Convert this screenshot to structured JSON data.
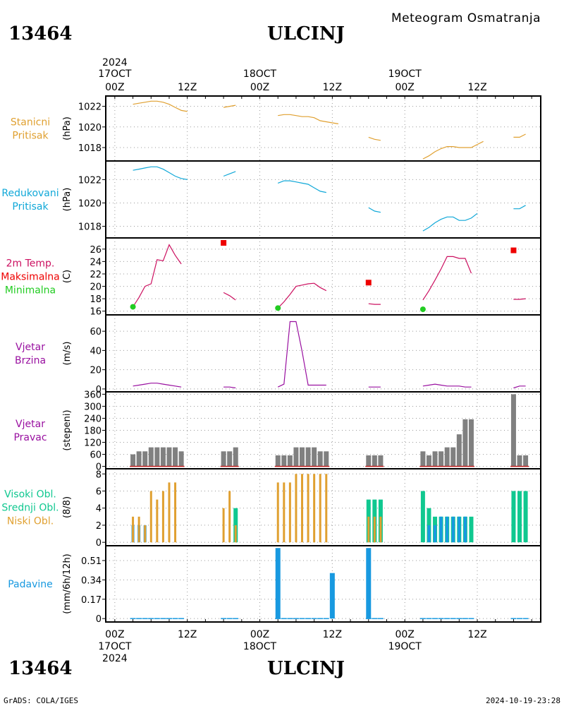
{
  "header": {
    "station_id": "13464",
    "station_name": "ULCINJ",
    "subtitle": "Meteogram Osmatranja"
  },
  "footer": {
    "left": "GrADS: COLA/IGES",
    "right": "2024-10-19-23:28"
  },
  "time_axis": {
    "top": [
      {
        "line1": "2024",
        "line2": "17OCT",
        "line3": "00Z",
        "x": 0
      },
      {
        "line3": "12Z",
        "x": 12
      },
      {
        "line2": "18OCT",
        "line3": "00Z",
        "x": 24
      },
      {
        "line3": "12Z",
        "x": 36
      },
      {
        "line2": "19OCT",
        "line3": "00Z",
        "x": 48
      },
      {
        "line3": "12Z",
        "x": 60
      }
    ],
    "bottom": [
      {
        "line1": "00Z",
        "line2": "17OCT",
        "line3": "2024",
        "x": 0
      },
      {
        "line1": "12Z",
        "x": 12
      },
      {
        "line1": "00Z",
        "line2": "18OCT",
        "x": 24
      },
      {
        "line1": "12Z",
        "x": 36
      },
      {
        "line1": "00Z",
        "line2": "19OCT",
        "x": 48
      },
      {
        "line1": "12Z",
        "x": 60
      }
    ],
    "range_hours": [
      -1.5,
      70.5
    ]
  },
  "colors": {
    "pressure": "#e0a030",
    "reduced": "#10a8d8",
    "temp": "#cc1060",
    "tmax": "#ee0000",
    "tmin": "#22cc22",
    "wind": "#9910a0",
    "dir_bar": "#808080",
    "high_cloud": "#10c890",
    "mid_cloud": "#1899e0",
    "low_cloud": "#e0a030",
    "precip": "#1899e0"
  },
  "chart_data": [
    {
      "type": "line",
      "panel": "stanicni",
      "labels": [
        "Stanicni",
        "Pritisak"
      ],
      "ylabel": "(hPa)",
      "yticks": [
        1018,
        1020,
        1022
      ],
      "ylim": [
        1016.7,
        1023.0
      ],
      "series": [
        {
          "segments": [
            [
              [
                3,
                1022.2
              ],
              [
                4,
                1022.3
              ],
              [
                5,
                1022.4
              ],
              [
                6,
                1022.5
              ],
              [
                7,
                1022.5
              ],
              [
                8,
                1022.4
              ],
              [
                9,
                1022.2
              ],
              [
                10,
                1021.9
              ],
              [
                11,
                1021.6
              ],
              [
                12,
                1021.5
              ]
            ],
            [
              [
                18,
                1021.9
              ],
              [
                19,
                1022.0
              ],
              [
                20,
                1022.1
              ]
            ],
            [
              [
                27,
                1021.1
              ],
              [
                28,
                1021.2
              ],
              [
                29,
                1021.2
              ],
              [
                30,
                1021.1
              ],
              [
                31,
                1021.0
              ],
              [
                32,
                1021.0
              ],
              [
                33,
                1020.9
              ],
              [
                34,
                1020.6
              ],
              [
                35,
                1020.5
              ],
              [
                36,
                1020.4
              ],
              [
                37,
                1020.3
              ]
            ],
            [
              [
                42,
                1019.0
              ],
              [
                43,
                1018.8
              ],
              [
                44,
                1018.7
              ]
            ],
            [
              [
                51,
                1016.9
              ],
              [
                52,
                1017.2
              ],
              [
                53,
                1017.6
              ],
              [
                54,
                1017.9
              ],
              [
                55,
                1018.1
              ],
              [
                56,
                1018.1
              ],
              [
                57,
                1018.0
              ],
              [
                58,
                1018.0
              ],
              [
                59,
                1018.0
              ],
              [
                60,
                1018.3
              ],
              [
                61,
                1018.6
              ]
            ],
            [
              [
                66,
                1019.0
              ],
              [
                67,
                1019.0
              ],
              [
                68,
                1019.3
              ]
            ]
          ]
        }
      ]
    },
    {
      "type": "line",
      "panel": "redukovani",
      "labels": [
        "Redukovani",
        "Pritisak"
      ],
      "ylabel": "(hPa)",
      "yticks": [
        1018,
        1020,
        1022
      ],
      "ylim": [
        1017.0,
        1023.6
      ],
      "series": [
        {
          "segments": [
            [
              [
                3,
                1022.8
              ],
              [
                4,
                1022.9
              ],
              [
                5,
                1023.0
              ],
              [
                6,
                1023.1
              ],
              [
                7,
                1023.1
              ],
              [
                8,
                1022.9
              ],
              [
                9,
                1022.6
              ],
              [
                10,
                1022.3
              ],
              [
                11,
                1022.1
              ],
              [
                12,
                1022.0
              ]
            ],
            [
              [
                18,
                1022.3
              ],
              [
                19,
                1022.5
              ],
              [
                20,
                1022.7
              ]
            ],
            [
              [
                27,
                1021.7
              ],
              [
                28,
                1021.9
              ],
              [
                29,
                1021.9
              ],
              [
                30,
                1021.8
              ],
              [
                31,
                1021.7
              ],
              [
                32,
                1021.6
              ],
              [
                33,
                1021.3
              ],
              [
                34,
                1021.0
              ],
              [
                35,
                1020.9
              ]
            ],
            [
              [
                42,
                1019.6
              ],
              [
                43,
                1019.3
              ],
              [
                44,
                1019.2
              ]
            ],
            [
              [
                51,
                1017.6
              ],
              [
                52,
                1017.9
              ],
              [
                53,
                1018.3
              ],
              [
                54,
                1018.6
              ],
              [
                55,
                1018.8
              ],
              [
                56,
                1018.8
              ],
              [
                57,
                1018.5
              ],
              [
                58,
                1018.5
              ],
              [
                59,
                1018.7
              ],
              [
                60,
                1019.1
              ]
            ],
            [
              [
                66,
                1019.5
              ],
              [
                67,
                1019.5
              ],
              [
                68,
                1019.8
              ]
            ]
          ]
        }
      ]
    },
    {
      "type": "line",
      "panel": "temperatura",
      "labels": [
        "2m Temp.",
        "Maksimalna",
        "Minimalna"
      ],
      "ylabel": "(C)",
      "yticks": [
        16,
        18,
        20,
        22,
        24,
        26
      ],
      "ylim": [
        15.4,
        27.8
      ],
      "series": [
        {
          "name": "2m Temp.",
          "segments": [
            [
              [
                3,
                16.7
              ],
              [
                4,
                18.2
              ],
              [
                5,
                20.0
              ],
              [
                6,
                20.4
              ],
              [
                7,
                24.3
              ],
              [
                8,
                24.1
              ],
              [
                9,
                26.7
              ],
              [
                10,
                25.0
              ],
              [
                11,
                23.6
              ]
            ],
            [
              [
                18,
                19.0
              ],
              [
                19,
                18.5
              ],
              [
                20,
                17.8
              ]
            ],
            [
              [
                27,
                16.5
              ],
              [
                28,
                17.5
              ],
              [
                29,
                18.7
              ],
              [
                30,
                20.0
              ],
              [
                31,
                20.2
              ],
              [
                32,
                20.4
              ],
              [
                33,
                20.5
              ],
              [
                34,
                19.8
              ],
              [
                35,
                19.3
              ]
            ],
            [
              [
                42,
                17.2
              ],
              [
                43,
                17.1
              ],
              [
                44,
                17.1
              ]
            ],
            [
              [
                51,
                17.8
              ],
              [
                52,
                19.3
              ],
              [
                53,
                21.0
              ],
              [
                54,
                22.8
              ],
              [
                55,
                24.8
              ],
              [
                56,
                24.8
              ],
              [
                57,
                24.5
              ],
              [
                58,
                24.5
              ],
              [
                59,
                22.1
              ]
            ],
            [
              [
                66,
                17.9
              ],
              [
                67,
                17.9
              ],
              [
                68,
                18.0
              ]
            ]
          ]
        },
        {
          "name": "Maksimalna",
          "points": [
            [
              18,
              27.0
            ],
            [
              42,
              20.6
            ],
            [
              66,
              25.8
            ]
          ]
        },
        {
          "name": "Minimalna",
          "points": [
            [
              3,
              16.7
            ],
            [
              27,
              16.5
            ],
            [
              51,
              16.3
            ]
          ]
        }
      ]
    },
    {
      "type": "line",
      "panel": "vjetar_brzina",
      "labels": [
        "Vjetar",
        "Brzina"
      ],
      "ylabel": "(m/s)",
      "yticks": [
        0,
        20,
        40,
        60
      ],
      "ylim": [
        -3,
        77
      ],
      "series": [
        {
          "segments": [
            [
              [
                3,
                3
              ],
              [
                4,
                4
              ],
              [
                5,
                5
              ],
              [
                6,
                6
              ],
              [
                7,
                6
              ],
              [
                8,
                5
              ],
              [
                9,
                4
              ],
              [
                10,
                3
              ],
              [
                11,
                2
              ]
            ],
            [
              [
                18,
                2
              ],
              [
                19,
                2
              ],
              [
                20,
                1
              ]
            ],
            [
              [
                27,
                2
              ],
              [
                28,
                5
              ],
              [
                29,
                70
              ],
              [
                30,
                70
              ],
              [
                31,
                39
              ],
              [
                32,
                4
              ],
              [
                33,
                4
              ],
              [
                34,
                4
              ],
              [
                35,
                4
              ]
            ],
            [
              [
                42,
                2
              ],
              [
                43,
                2
              ],
              [
                44,
                2
              ]
            ],
            [
              [
                51,
                3
              ],
              [
                52,
                4
              ],
              [
                53,
                5
              ],
              [
                54,
                4
              ],
              [
                55,
                3
              ],
              [
                56,
                3
              ],
              [
                57,
                3
              ],
              [
                58,
                2
              ],
              [
                59,
                2
              ]
            ],
            [
              [
                66,
                1
              ],
              [
                67,
                3
              ],
              [
                68,
                3
              ]
            ]
          ]
        }
      ]
    },
    {
      "type": "bar",
      "panel": "vjetar_pravac",
      "labels": [
        "Vjetar",
        "Pravac"
      ],
      "ylabel": "(stepeni)",
      "yticks": [
        0,
        60,
        120,
        180,
        240,
        300,
        360
      ],
      "ylim": [
        -12,
        372
      ],
      "x": [
        3,
        4,
        5,
        6,
        7,
        8,
        9,
        10,
        11,
        18,
        19,
        20,
        27,
        28,
        29,
        30,
        31,
        32,
        33,
        34,
        35,
        42,
        43,
        44,
        51,
        52,
        53,
        54,
        55,
        56,
        57,
        58,
        59,
        66,
        67,
        68
      ],
      "values": [
        60,
        75,
        75,
        95,
        95,
        95,
        95,
        95,
        75,
        75,
        75,
        95,
        55,
        55,
        55,
        95,
        95,
        95,
        95,
        75,
        75,
        55,
        55,
        55,
        75,
        55,
        75,
        75,
        95,
        95,
        160,
        235,
        235,
        360,
        55,
        55
      ]
    },
    {
      "type": "bar",
      "panel": "oblaci",
      "labels": [
        "Visoki Obl.",
        "Srednji Obl.",
        "Niski Obl."
      ],
      "ylabel": "(8/8)",
      "yticks": [
        0,
        2,
        4,
        6,
        8
      ],
      "ylim": [
        -0.4,
        8.6
      ],
      "x": [
        3,
        4,
        5,
        6,
        7,
        8,
        9,
        10,
        11,
        18,
        19,
        20,
        27,
        28,
        29,
        30,
        31,
        32,
        33,
        34,
        35,
        42,
        43,
        44,
        51,
        52,
        53,
        54,
        55,
        56,
        57,
        58,
        59,
        66,
        67,
        68
      ],
      "series": [
        {
          "name": "Visoki Obl.",
          "values": [
            0,
            0,
            0,
            0,
            0,
            0,
            0,
            0,
            0,
            0,
            0,
            4,
            0,
            0,
            0,
            0,
            0,
            0,
            0,
            0,
            0,
            5,
            5,
            5,
            6,
            4,
            3,
            3,
            3,
            3,
            3,
            3,
            3,
            6,
            6,
            6
          ]
        },
        {
          "name": "Srednji Obl.",
          "values": [
            2,
            2,
            2,
            0,
            0,
            0,
            0,
            0,
            0,
            0,
            0,
            0,
            0,
            0,
            0,
            0,
            0,
            0,
            0,
            0,
            0,
            0,
            0,
            0,
            0,
            2,
            2,
            3,
            3,
            3,
            3,
            3,
            0,
            0,
            0,
            0
          ]
        },
        {
          "name": "Niski Obl.",
          "values": [
            3,
            3,
            2,
            6,
            5,
            6,
            7,
            7,
            0,
            4,
            6,
            2,
            7,
            7,
            7,
            8,
            8,
            8,
            8,
            8,
            8,
            3,
            3,
            3,
            0,
            0,
            0,
            0,
            0,
            0,
            0,
            0,
            0,
            0,
            0,
            0
          ]
        }
      ]
    },
    {
      "type": "bar",
      "panel": "padavine",
      "labels": [
        "Padavine"
      ],
      "ylabel": "(mm/6h/12h)",
      "yticks": [
        0,
        0.17,
        0.34,
        0.51
      ],
      "yticklabels": [
        "0",
        "0.17",
        "0.34",
        "0.51"
      ],
      "ylim": [
        -0.03,
        0.64
      ],
      "x": [
        27,
        36,
        42
      ],
      "values": [
        0.62,
        0.4,
        0.62
      ]
    }
  ]
}
